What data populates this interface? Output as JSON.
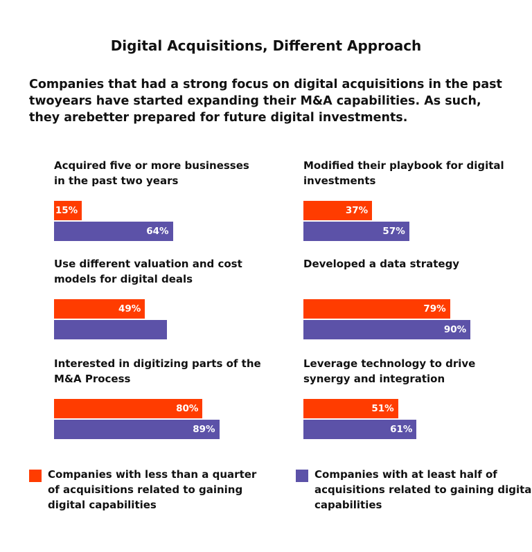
{
  "chart_data": {
    "type": "bar",
    "title": "Digital Acquisitions, Different Approach",
    "subtitle": "Companies that had a strong focus on digital acquisitions in the past twoyears have started expanding their M&A capabilities. As such, they arebetter prepared for future digital investments.",
    "categories": [
      "Acquired five or more businesses in the past two years",
      "Modified their playbook for digital investments",
      "Use different valuation and cost models for digital deals",
      "Developed a data strategy",
      "Interested in digitizing parts of the M&A Process",
      "Leverage technology to drive synergy and integration"
    ],
    "series": [
      {
        "name": "Companies with less than a quarter of acquisitions related to gaining digital capabilities",
        "color": "#ff3c00",
        "values": [
          15,
          37,
          49,
          79,
          80,
          51
        ],
        "value_labels": [
          "15%",
          "37%",
          "49%",
          "79%",
          "80%",
          "51%"
        ]
      },
      {
        "name": "Companies with at least half of acquisitions related to gaining digital capabilities",
        "color": "#5c52a8",
        "values": [
          64,
          57,
          61,
          90,
          89,
          61
        ],
        "value_labels": [
          "64%",
          "57%",
          null,
          "90%",
          "89%",
          "61%"
        ]
      }
    ]
  }
}
